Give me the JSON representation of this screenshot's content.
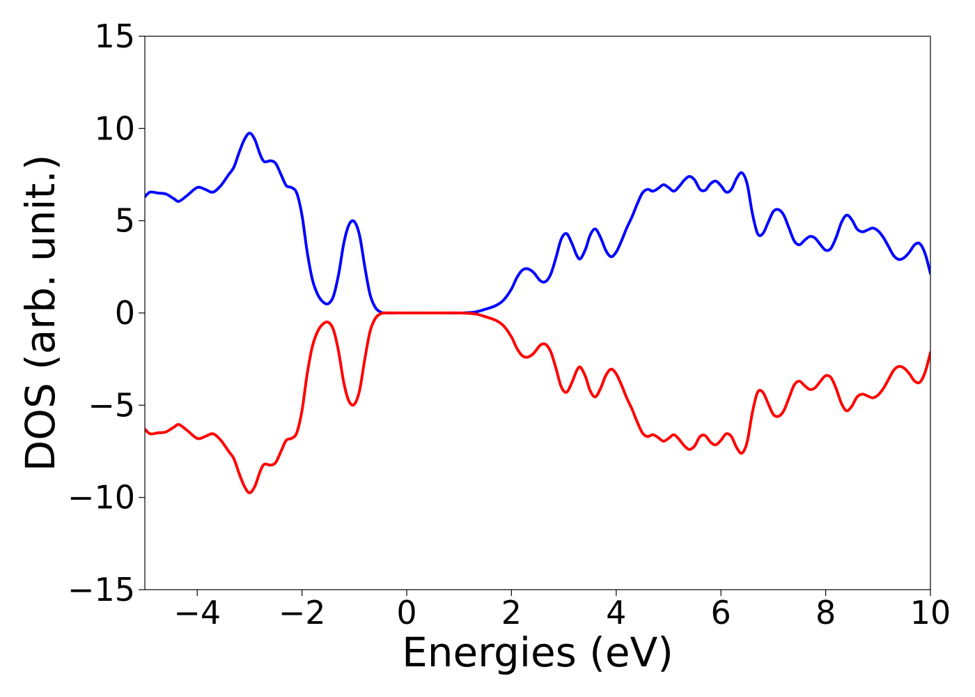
{
  "chart_data": {
    "type": "line",
    "title": "",
    "xlabel": "Energies (eV)",
    "ylabel": "DOS (arb. unit.)",
    "xlim": [
      -5,
      10
    ],
    "ylim": [
      -15,
      15
    ],
    "xticks": [
      -4,
      -2,
      0,
      2,
      4,
      6,
      8,
      10
    ],
    "xtick_labels": [
      "−4",
      "−2",
      "0",
      "2",
      "4",
      "6",
      "8",
      "10"
    ],
    "yticks": [
      15,
      10,
      5,
      0,
      -5,
      -10,
      -15
    ],
    "ytick_labels": [
      "15",
      "10",
      "5",
      "0",
      "−5",
      "−10",
      "−15"
    ],
    "grid": false,
    "legend": "none",
    "series": [
      {
        "color": "#0000ff",
        "points": [
          [
            -5.0,
            6.3
          ],
          [
            -4.9,
            6.55
          ],
          [
            -4.75,
            6.5
          ],
          [
            -4.6,
            6.45
          ],
          [
            -4.45,
            6.2
          ],
          [
            -4.35,
            6.05
          ],
          [
            -4.2,
            6.35
          ],
          [
            -4.0,
            6.8
          ],
          [
            -3.85,
            6.7
          ],
          [
            -3.7,
            6.55
          ],
          [
            -3.55,
            6.9
          ],
          [
            -3.4,
            7.5
          ],
          [
            -3.3,
            7.9
          ],
          [
            -3.2,
            8.7
          ],
          [
            -3.1,
            9.4
          ],
          [
            -3.0,
            9.75
          ],
          [
            -2.9,
            9.4
          ],
          [
            -2.8,
            8.6
          ],
          [
            -2.72,
            8.2
          ],
          [
            -2.6,
            8.25
          ],
          [
            -2.5,
            8.1
          ],
          [
            -2.4,
            7.5
          ],
          [
            -2.3,
            6.9
          ],
          [
            -2.2,
            6.8
          ],
          [
            -2.1,
            6.5
          ],
          [
            -2.0,
            5.3
          ],
          [
            -1.9,
            3.3
          ],
          [
            -1.8,
            1.8
          ],
          [
            -1.7,
            1.0
          ],
          [
            -1.6,
            0.6
          ],
          [
            -1.5,
            0.5
          ],
          [
            -1.4,
            0.9
          ],
          [
            -1.3,
            2.1
          ],
          [
            -1.2,
            3.8
          ],
          [
            -1.1,
            4.8
          ],
          [
            -1.0,
            4.95
          ],
          [
            -0.9,
            4.2
          ],
          [
            -0.8,
            2.5
          ],
          [
            -0.7,
            1.0
          ],
          [
            -0.6,
            0.3
          ],
          [
            -0.5,
            0.05
          ],
          [
            -0.4,
            0.0
          ],
          [
            0.0,
            0.0
          ],
          [
            0.5,
            0.0
          ],
          [
            1.0,
            0.0
          ],
          [
            1.3,
            0.05
          ],
          [
            1.5,
            0.2
          ],
          [
            1.7,
            0.4
          ],
          [
            1.85,
            0.7
          ],
          [
            2.0,
            1.3
          ],
          [
            2.1,
            1.9
          ],
          [
            2.2,
            2.3
          ],
          [
            2.3,
            2.4
          ],
          [
            2.42,
            2.2
          ],
          [
            2.55,
            1.75
          ],
          [
            2.65,
            1.7
          ],
          [
            2.75,
            2.1
          ],
          [
            2.85,
            3.0
          ],
          [
            2.95,
            4.0
          ],
          [
            3.05,
            4.3
          ],
          [
            3.15,
            3.8
          ],
          [
            3.25,
            3.1
          ],
          [
            3.32,
            2.95
          ],
          [
            3.42,
            3.5
          ],
          [
            3.5,
            4.2
          ],
          [
            3.6,
            4.55
          ],
          [
            3.7,
            4.1
          ],
          [
            3.8,
            3.4
          ],
          [
            3.9,
            3.05
          ],
          [
            4.0,
            3.3
          ],
          [
            4.1,
            3.9
          ],
          [
            4.2,
            4.6
          ],
          [
            4.3,
            5.2
          ],
          [
            4.4,
            5.9
          ],
          [
            4.5,
            6.5
          ],
          [
            4.6,
            6.7
          ],
          [
            4.7,
            6.6
          ],
          [
            4.8,
            6.75
          ],
          [
            4.9,
            6.95
          ],
          [
            5.0,
            6.8
          ],
          [
            5.1,
            6.6
          ],
          [
            5.2,
            6.85
          ],
          [
            5.3,
            7.2
          ],
          [
            5.4,
            7.4
          ],
          [
            5.5,
            7.2
          ],
          [
            5.6,
            6.7
          ],
          [
            5.7,
            6.65
          ],
          [
            5.8,
            7.0
          ],
          [
            5.9,
            7.15
          ],
          [
            6.0,
            6.9
          ],
          [
            6.1,
            6.55
          ],
          [
            6.2,
            6.7
          ],
          [
            6.3,
            7.3
          ],
          [
            6.4,
            7.6
          ],
          [
            6.5,
            7.0
          ],
          [
            6.6,
            5.4
          ],
          [
            6.7,
            4.3
          ],
          [
            6.8,
            4.3
          ],
          [
            6.9,
            4.9
          ],
          [
            7.0,
            5.5
          ],
          [
            7.1,
            5.6
          ],
          [
            7.2,
            5.3
          ],
          [
            7.3,
            4.6
          ],
          [
            7.4,
            3.9
          ],
          [
            7.5,
            3.7
          ],
          [
            7.6,
            3.95
          ],
          [
            7.7,
            4.15
          ],
          [
            7.8,
            4.05
          ],
          [
            7.9,
            3.7
          ],
          [
            8.0,
            3.4
          ],
          [
            8.1,
            3.5
          ],
          [
            8.2,
            4.1
          ],
          [
            8.3,
            4.9
          ],
          [
            8.4,
            5.3
          ],
          [
            8.5,
            5.05
          ],
          [
            8.6,
            4.55
          ],
          [
            8.7,
            4.4
          ],
          [
            8.8,
            4.5
          ],
          [
            8.9,
            4.6
          ],
          [
            9.0,
            4.45
          ],
          [
            9.1,
            4.1
          ],
          [
            9.2,
            3.6
          ],
          [
            9.3,
            3.1
          ],
          [
            9.4,
            2.9
          ],
          [
            9.5,
            3.0
          ],
          [
            9.6,
            3.3
          ],
          [
            9.7,
            3.7
          ],
          [
            9.8,
            3.75
          ],
          [
            9.9,
            3.2
          ],
          [
            10.0,
            2.15
          ]
        ]
      },
      {
        "color": "#ff0000",
        "points": [
          [
            -5.0,
            -6.3
          ],
          [
            -4.9,
            -6.55
          ],
          [
            -4.75,
            -6.5
          ],
          [
            -4.6,
            -6.45
          ],
          [
            -4.45,
            -6.2
          ],
          [
            -4.35,
            -6.05
          ],
          [
            -4.2,
            -6.35
          ],
          [
            -4.0,
            -6.8
          ],
          [
            -3.85,
            -6.7
          ],
          [
            -3.7,
            -6.55
          ],
          [
            -3.55,
            -6.9
          ],
          [
            -3.4,
            -7.5
          ],
          [
            -3.3,
            -7.9
          ],
          [
            -3.2,
            -8.7
          ],
          [
            -3.1,
            -9.4
          ],
          [
            -3.0,
            -9.75
          ],
          [
            -2.9,
            -9.4
          ],
          [
            -2.8,
            -8.6
          ],
          [
            -2.72,
            -8.2
          ],
          [
            -2.6,
            -8.25
          ],
          [
            -2.5,
            -8.1
          ],
          [
            -2.4,
            -7.5
          ],
          [
            -2.3,
            -6.9
          ],
          [
            -2.2,
            -6.8
          ],
          [
            -2.1,
            -6.5
          ],
          [
            -2.0,
            -5.3
          ],
          [
            -1.9,
            -3.3
          ],
          [
            -1.8,
            -1.8
          ],
          [
            -1.7,
            -1.0
          ],
          [
            -1.6,
            -0.6
          ],
          [
            -1.5,
            -0.5
          ],
          [
            -1.4,
            -0.9
          ],
          [
            -1.3,
            -2.1
          ],
          [
            -1.2,
            -3.8
          ],
          [
            -1.1,
            -4.8
          ],
          [
            -1.0,
            -4.95
          ],
          [
            -0.9,
            -4.2
          ],
          [
            -0.8,
            -2.5
          ],
          [
            -0.7,
            -1.0
          ],
          [
            -0.6,
            -0.3
          ],
          [
            -0.5,
            -0.05
          ],
          [
            -0.4,
            0.0
          ],
          [
            0.0,
            0.0
          ],
          [
            0.5,
            0.0
          ],
          [
            1.0,
            0.0
          ],
          [
            1.3,
            -0.05
          ],
          [
            1.5,
            -0.2
          ],
          [
            1.7,
            -0.4
          ],
          [
            1.85,
            -0.7
          ],
          [
            2.0,
            -1.3
          ],
          [
            2.1,
            -1.9
          ],
          [
            2.2,
            -2.3
          ],
          [
            2.3,
            -2.4
          ],
          [
            2.42,
            -2.2
          ],
          [
            2.55,
            -1.75
          ],
          [
            2.65,
            -1.7
          ],
          [
            2.75,
            -2.1
          ],
          [
            2.85,
            -3.0
          ],
          [
            2.95,
            -4.0
          ],
          [
            3.05,
            -4.3
          ],
          [
            3.15,
            -3.8
          ],
          [
            3.25,
            -3.1
          ],
          [
            3.32,
            -2.95
          ],
          [
            3.42,
            -3.5
          ],
          [
            3.5,
            -4.2
          ],
          [
            3.6,
            -4.55
          ],
          [
            3.7,
            -4.1
          ],
          [
            3.8,
            -3.4
          ],
          [
            3.9,
            -3.05
          ],
          [
            4.0,
            -3.3
          ],
          [
            4.1,
            -3.9
          ],
          [
            4.2,
            -4.6
          ],
          [
            4.3,
            -5.2
          ],
          [
            4.4,
            -5.9
          ],
          [
            4.5,
            -6.5
          ],
          [
            4.6,
            -6.7
          ],
          [
            4.7,
            -6.6
          ],
          [
            4.8,
            -6.75
          ],
          [
            4.9,
            -6.95
          ],
          [
            5.0,
            -6.8
          ],
          [
            5.1,
            -6.6
          ],
          [
            5.2,
            -6.85
          ],
          [
            5.3,
            -7.2
          ],
          [
            5.4,
            -7.4
          ],
          [
            5.5,
            -7.2
          ],
          [
            5.6,
            -6.7
          ],
          [
            5.7,
            -6.65
          ],
          [
            5.8,
            -7.0
          ],
          [
            5.9,
            -7.15
          ],
          [
            6.0,
            -6.9
          ],
          [
            6.1,
            -6.55
          ],
          [
            6.2,
            -6.7
          ],
          [
            6.3,
            -7.3
          ],
          [
            6.4,
            -7.6
          ],
          [
            6.5,
            -7.0
          ],
          [
            6.6,
            -5.4
          ],
          [
            6.7,
            -4.3
          ],
          [
            6.8,
            -4.3
          ],
          [
            6.9,
            -4.9
          ],
          [
            7.0,
            -5.5
          ],
          [
            7.1,
            -5.6
          ],
          [
            7.2,
            -5.3
          ],
          [
            7.3,
            -4.6
          ],
          [
            7.4,
            -3.9
          ],
          [
            7.5,
            -3.7
          ],
          [
            7.6,
            -3.95
          ],
          [
            7.7,
            -4.15
          ],
          [
            7.8,
            -4.05
          ],
          [
            7.9,
            -3.7
          ],
          [
            8.0,
            -3.4
          ],
          [
            8.1,
            -3.5
          ],
          [
            8.2,
            -4.1
          ],
          [
            8.3,
            -4.9
          ],
          [
            8.4,
            -5.3
          ],
          [
            8.5,
            -5.05
          ],
          [
            8.6,
            -4.55
          ],
          [
            8.7,
            -4.4
          ],
          [
            8.8,
            -4.5
          ],
          [
            8.9,
            -4.6
          ],
          [
            9.0,
            -4.45
          ],
          [
            9.1,
            -4.1
          ],
          [
            9.2,
            -3.6
          ],
          [
            9.3,
            -3.1
          ],
          [
            9.4,
            -2.9
          ],
          [
            9.5,
            -3.0
          ],
          [
            9.6,
            -3.3
          ],
          [
            9.7,
            -3.7
          ],
          [
            9.8,
            -3.75
          ],
          [
            9.9,
            -3.2
          ],
          [
            10.0,
            -2.15
          ]
        ]
      }
    ]
  }
}
